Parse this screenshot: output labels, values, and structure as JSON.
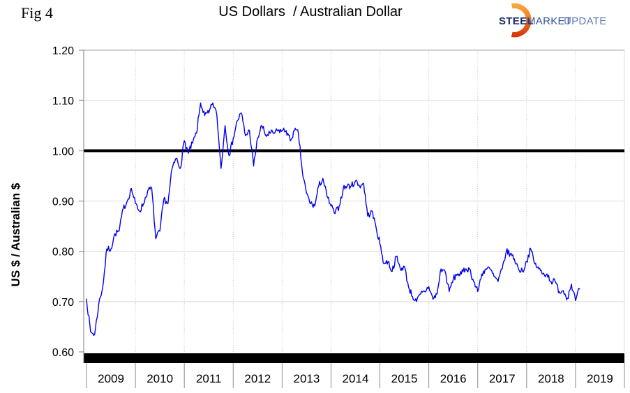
{
  "header": {
    "fig_label": "Fig 4",
    "title": "US Dollars  / Australian Dollar"
  },
  "logo": {
    "steel": "STEEL",
    "market": "MARKET",
    "update": "UPDATE"
  },
  "chart_data": {
    "type": "line",
    "title": "US Dollars  / Australian Dollar",
    "ylabel": "US $ / Australian $",
    "xlabel": "",
    "ylim": [
      0.6,
      1.2
    ],
    "y_ticks": [
      "0.60",
      "0.70",
      "0.80",
      "0.90",
      "1.00",
      "1.10",
      "1.20"
    ],
    "x_categories": [
      "2009",
      "2010",
      "2011",
      "2012",
      "2013",
      "2014",
      "2015",
      "2016",
      "2017",
      "2018",
      "2019"
    ],
    "x_axis_span_years": [
      2009,
      2020
    ],
    "grid": {
      "horizontal": "solid-light",
      "vertical": "dotted-light"
    },
    "legend": "none",
    "reference_line": {
      "value": 1.0,
      "color": "#000000",
      "style": "thick-solid"
    },
    "bottom_band": {
      "color": "#000000",
      "style": "thick black bar along base of plot"
    },
    "series": [
      {
        "name": "USD per AUD exchange rate",
        "color": "#0000ee",
        "start": "2009-01",
        "interval_months": 1,
        "values": [
          0.705,
          0.64,
          0.635,
          0.695,
          0.73,
          0.805,
          0.805,
          0.835,
          0.84,
          0.885,
          0.9,
          0.925,
          0.895,
          0.88,
          0.895,
          0.92,
          0.925,
          0.825,
          0.84,
          0.905,
          0.895,
          0.965,
          0.985,
          0.965,
          1.02,
          0.995,
          1.015,
          1.035,
          1.095,
          1.07,
          1.075,
          1.095,
          1.07,
          0.965,
          1.05,
          0.99,
          1.025,
          1.06,
          1.075,
          1.03,
          1.04,
          0.97,
          1.025,
          1.05,
          1.03,
          1.035,
          1.035,
          1.04,
          1.04,
          1.04,
          1.02,
          1.04,
          1.035,
          0.955,
          0.915,
          0.895,
          0.89,
          0.93,
          0.945,
          0.91,
          0.89,
          0.875,
          0.89,
          0.925,
          0.93,
          0.93,
          0.94,
          0.93,
          0.935,
          0.87,
          0.88,
          0.85,
          0.815,
          0.775,
          0.78,
          0.76,
          0.79,
          0.765,
          0.77,
          0.73,
          0.71,
          0.7,
          0.715,
          0.72,
          0.73,
          0.705,
          0.715,
          0.765,
          0.76,
          0.72,
          0.745,
          0.755,
          0.755,
          0.765,
          0.765,
          0.74,
          0.72,
          0.755,
          0.765,
          0.765,
          0.75,
          0.74,
          0.765,
          0.8,
          0.795,
          0.785,
          0.765,
          0.76,
          0.78,
          0.805,
          0.775,
          0.765,
          0.755,
          0.755,
          0.74,
          0.74,
          0.72,
          0.722,
          0.707,
          0.735,
          0.702,
          0.725
        ]
      }
    ]
  }
}
